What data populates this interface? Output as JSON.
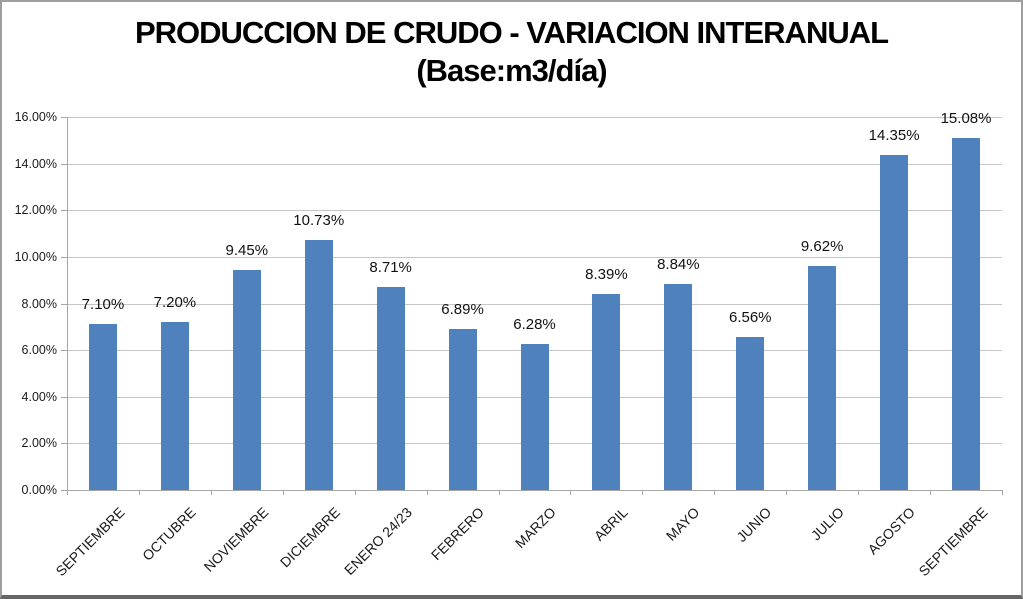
{
  "chart_data": {
    "type": "bar",
    "title": "PRODUCCION DE CRUDO - VARIACION INTERANUAL",
    "subtitle": "(Base:m3/día)",
    "categories": [
      "SEPTIEMBRE",
      "OCTUBRE",
      "NOVIEMBRE",
      "DICIEMBRE",
      "ENERO 24/23",
      "FEBRERO",
      "MARZO",
      "ABRIL",
      "MAYO",
      "JUNIO",
      "JULIO",
      "AGOSTO",
      "SEPTIEMBRE"
    ],
    "values": [
      7.1,
      7.2,
      9.45,
      10.73,
      8.71,
      6.89,
      6.28,
      8.39,
      8.84,
      6.56,
      9.62,
      14.35,
      15.08
    ],
    "value_labels": [
      "7.10%",
      "7.20%",
      "9.45%",
      "10.73%",
      "8.71%",
      "6.89%",
      "6.28%",
      "8.39%",
      "8.84%",
      "6.56%",
      "9.62%",
      "14.35%",
      "15.08%"
    ],
    "xlabel": "",
    "ylabel": "",
    "ylim": [
      0,
      16
    ],
    "y_tick_step": 2,
    "y_tick_labels": [
      "0.00%",
      "2.00%",
      "4.00%",
      "6.00%",
      "8.00%",
      "10.00%",
      "12.00%",
      "14.00%",
      "16.00%"
    ],
    "grid": true,
    "legend": "none",
    "colors": {
      "bar": "#4F81BD",
      "gridline": "#C6C6C6",
      "axis": "#A6A6A6",
      "label_text": "#1A1A1A",
      "title_text": "#000000"
    }
  }
}
